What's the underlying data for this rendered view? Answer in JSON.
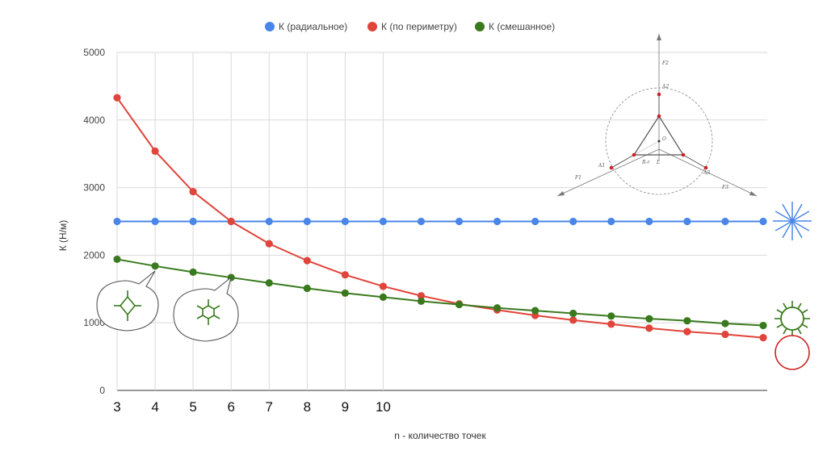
{
  "chart_data": {
    "type": "line",
    "title": "",
    "xlabel": "n - количество точек",
    "ylabel": "К (Н/м)",
    "x": [
      3,
      4,
      5,
      6,
      7,
      8,
      9,
      10,
      11,
      12,
      13,
      14,
      15,
      16,
      17,
      18,
      19,
      20
    ],
    "x_tick_labels": [
      "3",
      "4",
      "5",
      "6",
      "7",
      "8",
      "9",
      "10"
    ],
    "y_ticks": [
      0,
      1000,
      2000,
      3000,
      4000,
      5000
    ],
    "ylim": [
      0,
      5000
    ],
    "grid": true,
    "legend_position": "top",
    "series": [
      {
        "name": "К (радиальное)",
        "color": "#4a86e8",
        "values": [
          2500,
          2500,
          2500,
          2500,
          2500,
          2500,
          2500,
          2500,
          2500,
          2500,
          2500,
          2500,
          2500,
          2500,
          2500,
          2500,
          2500,
          2500
        ]
      },
      {
        "name": "К (по периметру)",
        "color": "#e0443a",
        "values": [
          4330,
          3540,
          2940,
          2500,
          2170,
          1920,
          1710,
          1540,
          1400,
          1280,
          1190,
          1110,
          1040,
          980,
          920,
          870,
          830,
          780
        ]
      },
      {
        "name": "К (смешанное)",
        "color": "#3a7a1e",
        "values": [
          1940,
          1840,
          1750,
          1670,
          1590,
          1510,
          1440,
          1380,
          1320,
          1270,
          1220,
          1180,
          1140,
          1100,
          1060,
          1030,
          990,
          960
        ]
      }
    ]
  },
  "icons": {
    "radial_star": "#4a86e8",
    "sunburst": "#3a7a1e",
    "circle": "#cc2222",
    "diamond_bubble": "#3a7a1e",
    "hexagon_bubble": "#3a7a1e"
  },
  "inset_diagram": {
    "labels": [
      "F2",
      "A2",
      "O",
      "A1",
      "A3",
      "R-r",
      "L",
      "F1",
      "F3"
    ]
  }
}
